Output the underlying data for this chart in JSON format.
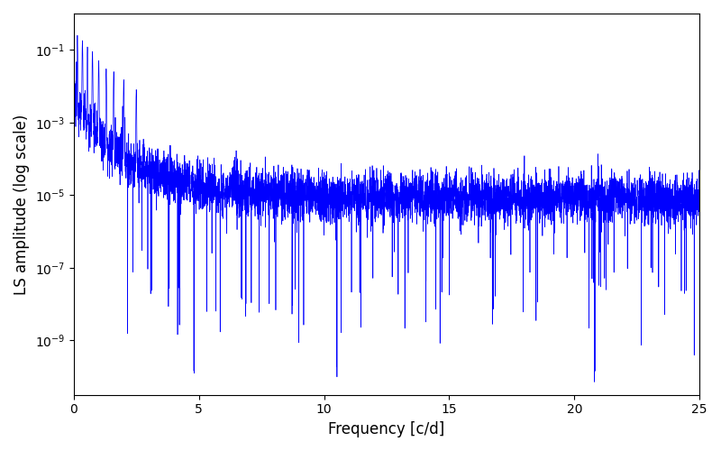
{
  "xlabel": "Frequency [c/d]",
  "ylabel": "LS amplitude (log scale)",
  "xlim": [
    0,
    25
  ],
  "ylim_log": [
    -10.5,
    0
  ],
  "line_color": "#0000ff",
  "line_width": 0.5,
  "freq_max": 25.0,
  "n_points": 5000,
  "background_color": "#ffffff",
  "figsize": [
    8.0,
    5.0
  ],
  "dpi": 100
}
